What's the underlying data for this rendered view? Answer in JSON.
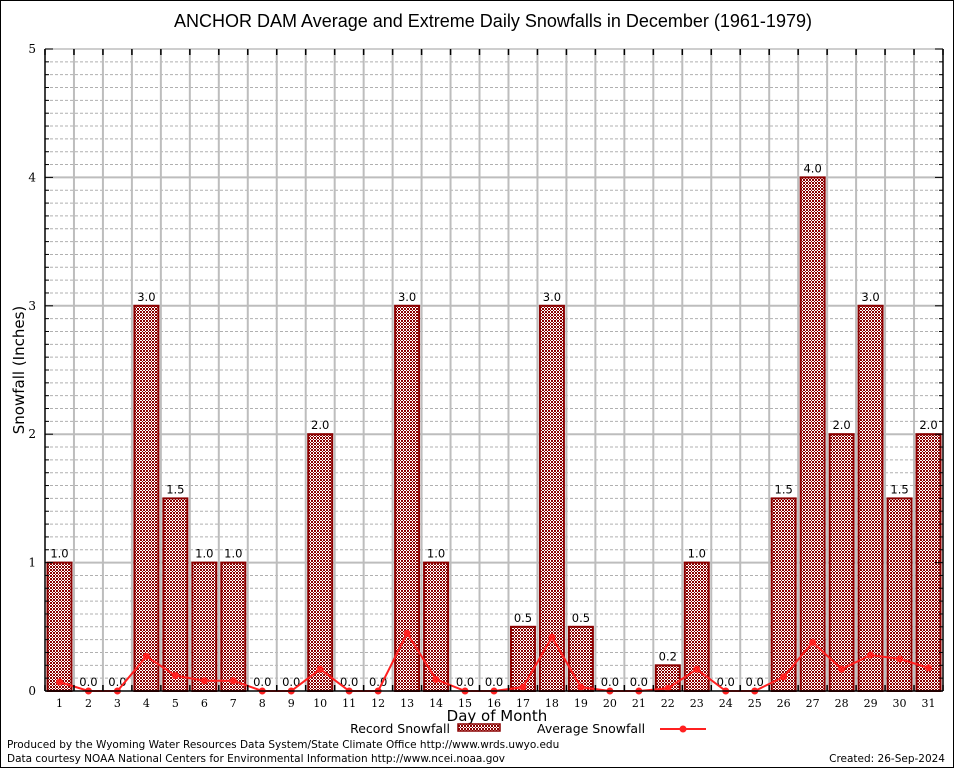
{
  "chart_data": {
    "type": "bar",
    "title": "ANCHOR DAM Average and Extreme Daily Snowfalls in December (1961-1979)",
    "xlabel": "Day of Month",
    "ylabel": "Snowfall (Inches)",
    "ylim": [
      0,
      5
    ],
    "yticks": [
      "0",
      "1",
      "2",
      "3",
      "4",
      "5"
    ],
    "grid": true,
    "categories": [
      "1",
      "2",
      "3",
      "4",
      "5",
      "6",
      "7",
      "8",
      "9",
      "10",
      "11",
      "12",
      "13",
      "14",
      "15",
      "16",
      "17",
      "18",
      "19",
      "20",
      "21",
      "22",
      "23",
      "24",
      "25",
      "26",
      "27",
      "28",
      "29",
      "30",
      "31"
    ],
    "series": [
      {
        "name": "Record Snowfall",
        "type": "bar",
        "color": "#8b0000",
        "values": [
          1.0,
          0.0,
          0.0,
          3.0,
          1.5,
          1.0,
          1.0,
          0.0,
          0.0,
          2.0,
          0.0,
          0.0,
          3.0,
          1.0,
          0.0,
          0.0,
          0.5,
          3.0,
          0.5,
          0.0,
          0.0,
          0.2,
          1.0,
          0.0,
          0.0,
          1.5,
          4.0,
          2.0,
          3.0,
          1.5,
          2.0
        ],
        "labels": [
          "1.0",
          "0.0",
          "0.0",
          "3.0",
          "1.5",
          "1.0",
          "1.0",
          "0.0",
          "0.0",
          "2.0",
          "0.0",
          "0.0",
          "3.0",
          "1.0",
          "0.0",
          "0.0",
          "0.5",
          "3.0",
          "0.5",
          "0.0",
          "0.0",
          "0.2",
          "1.0",
          "0.0",
          "0.0",
          "1.5",
          "4.0",
          "2.0",
          "3.0",
          "1.5",
          "2.0"
        ]
      },
      {
        "name": "Average Snowfall",
        "type": "line",
        "color": "#ff2020",
        "values": [
          0.07,
          0.0,
          0.0,
          0.27,
          0.12,
          0.08,
          0.08,
          0.0,
          0.0,
          0.17,
          0.0,
          0.0,
          0.45,
          0.09,
          0.0,
          0.0,
          0.03,
          0.42,
          0.03,
          0.0,
          0.0,
          0.02,
          0.17,
          0.0,
          0.0,
          0.11,
          0.38,
          0.17,
          0.28,
          0.25,
          0.18
        ]
      }
    ],
    "legend": {
      "placement": "bottom-center",
      "entries": [
        "Record Snowfall",
        "Average Snowfall"
      ]
    }
  },
  "footer": {
    "line1": "Produced by the Wyoming Water Resources Data System/State Climate Office http://www.wrds.uwyo.edu",
    "line2": "Data courtesy NOAA National Centers for Environmental Information http://www.ncei.noaa.gov",
    "created": "Created: 26-Sep-2024"
  }
}
